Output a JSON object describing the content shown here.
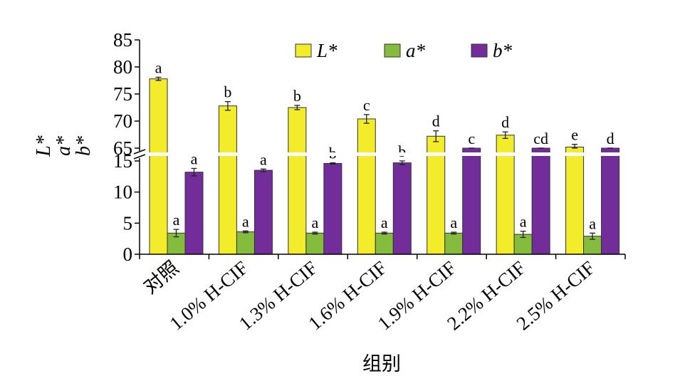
{
  "chart_data": {
    "type": "bar",
    "title": "",
    "xlabel": "组别",
    "ylabel_lines": [
      "L*",
      "a*",
      "b*"
    ],
    "y_axis_break": {
      "lower": [
        0,
        15
      ],
      "upper": [
        65,
        85
      ]
    },
    "yticks_lower": [
      "0",
      "5",
      "10",
      "15"
    ],
    "yticks_upper": [
      "65",
      "70",
      "75",
      "80",
      "85"
    ],
    "categories": [
      "对照",
      "1.0% H-CIF",
      "1.3% H-CIF",
      "1.6% H-CIF",
      "1.9% H-CIF",
      "2.2% H-CIF",
      "2.5% H-CIF"
    ],
    "series": [
      {
        "name": "L*",
        "color": "#f2ec2a",
        "values": [
          77.8,
          72.8,
          72.5,
          70.4,
          67.2,
          67.4,
          65.2
        ],
        "errors": [
          0.3,
          0.8,
          0.4,
          0.8,
          1.0,
          0.6,
          0.5
        ],
        "letters": [
          "a",
          "b",
          "b",
          "c",
          "d",
          "d",
          "e"
        ]
      },
      {
        "name": "a*",
        "color": "#86bc3e",
        "values": [
          3.4,
          3.6,
          3.4,
          3.4,
          3.4,
          3.2,
          2.9
        ],
        "errors": [
          0.6,
          0.15,
          0.15,
          0.15,
          0.15,
          0.5,
          0.5
        ],
        "letters": [
          "a",
          "a",
          "a",
          "a",
          "a",
          "a",
          "a"
        ]
      },
      {
        "name": "b*",
        "color": "#722d9b",
        "values": [
          13.2,
          13.5,
          14.6,
          14.7,
          15.3,
          15.6,
          16.0
        ],
        "errors": [
          0.6,
          0.2,
          0.1,
          0.3,
          0.15,
          0.3,
          0.3
        ],
        "letters": [
          "a",
          "a",
          "b",
          "b",
          "c",
          "cd",
          "d"
        ]
      }
    ],
    "legend": {
      "position": "top",
      "items": [
        "L*",
        "a*",
        "b*"
      ]
    }
  }
}
